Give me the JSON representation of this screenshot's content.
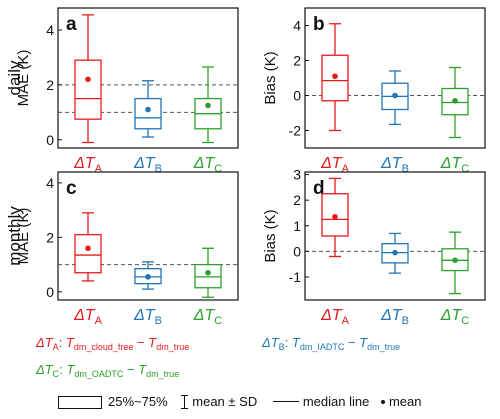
{
  "colors": {
    "A": "#e41a1c",
    "B": "#1f77b4",
    "C": "#2ca02c",
    "axis": "#111111",
    "ref": "#555555"
  },
  "row_labels": {
    "daily": "daily",
    "monthly": "monthly"
  },
  "chart_data": [
    {
      "type": "box",
      "panel": "a",
      "row": "daily",
      "ylabel": "MAE (K)",
      "ylim": [
        -0.3,
        4.8
      ],
      "yticks": [
        0,
        2,
        4
      ],
      "ref_lines": [
        2.0,
        1.0
      ],
      "categories": [
        "A",
        "B",
        "C"
      ],
      "boxes": [
        {
          "whisker_low": -0.1,
          "q1": 0.75,
          "median": 1.5,
          "q3": 2.9,
          "whisker_high": 4.55,
          "mean": 2.2
        },
        {
          "whisker_low": 0.1,
          "q1": 0.4,
          "median": 0.8,
          "q3": 1.5,
          "whisker_high": 2.15,
          "mean": 1.1
        },
        {
          "whisker_low": -0.1,
          "q1": 0.4,
          "median": 0.95,
          "q3": 1.5,
          "whisker_high": 2.65,
          "mean": 1.25
        }
      ]
    },
    {
      "type": "box",
      "panel": "b",
      "row": "daily",
      "ylabel": "Bias (K)",
      "ylim": [
        -3.0,
        5.0
      ],
      "yticks": [
        -2,
        0,
        2,
        4
      ],
      "ref_lines": [
        0
      ],
      "categories": [
        "A",
        "B",
        "C"
      ],
      "boxes": [
        {
          "whisker_low": -2.0,
          "q1": -0.3,
          "median": 0.85,
          "q3": 2.3,
          "whisker_high": 4.1,
          "mean": 1.1
        },
        {
          "whisker_low": -1.65,
          "q1": -0.8,
          "median": -0.05,
          "q3": 0.7,
          "whisker_high": 1.4,
          "mean": 0.0
        },
        {
          "whisker_low": -2.4,
          "q1": -1.1,
          "median": -0.4,
          "q3": 0.4,
          "whisker_high": 1.6,
          "mean": -0.3
        }
      ]
    },
    {
      "type": "box",
      "panel": "c",
      "row": "monthly",
      "ylabel": "MAE (K)",
      "ylim": [
        -0.3,
        4.4
      ],
      "yticks": [
        0,
        2,
        4
      ],
      "ref_lines": [
        1.0
      ],
      "categories": [
        "A",
        "B",
        "C"
      ],
      "boxes": [
        {
          "whisker_low": 0.4,
          "q1": 0.7,
          "median": 1.35,
          "q3": 2.1,
          "whisker_high": 2.9,
          "mean": 1.6
        },
        {
          "whisker_low": 0.1,
          "q1": 0.3,
          "median": 0.55,
          "q3": 0.85,
          "whisker_high": 1.1,
          "mean": 0.55
        },
        {
          "whisker_low": -0.2,
          "q1": 0.15,
          "median": 0.55,
          "q3": 1.0,
          "whisker_high": 1.6,
          "mean": 0.7
        }
      ]
    },
    {
      "type": "box",
      "panel": "d",
      "row": "monthly",
      "ylabel": "Bias (K)",
      "ylim": [
        -1.9,
        3.1
      ],
      "yticks": [
        -1,
        0,
        1,
        2,
        3
      ],
      "ref_lines": [
        0
      ],
      "categories": [
        "A",
        "B",
        "C"
      ],
      "boxes": [
        {
          "whisker_low": -0.2,
          "q1": 0.6,
          "median": 1.25,
          "q3": 2.25,
          "whisker_high": 2.85,
          "mean": 1.35
        },
        {
          "whisker_low": -0.85,
          "q1": -0.45,
          "median": -0.05,
          "q3": 0.3,
          "whisker_high": 0.7,
          "mean": -0.05
        },
        {
          "whisker_low": -1.65,
          "q1": -0.75,
          "median": -0.35,
          "q3": 0.1,
          "whisker_high": 0.75,
          "mean": -0.35
        }
      ]
    }
  ],
  "category_labels": {
    "A": {
      "delta": "ΔT",
      "sub": "A"
    },
    "B": {
      "delta": "ΔT",
      "sub": "B"
    },
    "C": {
      "delta": "ΔT",
      "sub": "C"
    }
  },
  "definitions": {
    "A": {
      "lhs": "ΔT",
      "lhs_sub": "A",
      "t1": "T",
      "t1_sub": "dm_cloud_free",
      "minus": " − ",
      "t2": "T",
      "t2_sub": "dm_true"
    },
    "B": {
      "lhs": "ΔT",
      "lhs_sub": "B",
      "t1": "T",
      "t1_sub": "dm_IADTC",
      "minus": " − ",
      "t2": "T",
      "t2_sub": "dm_true"
    },
    "C": {
      "lhs": "ΔT",
      "lhs_sub": "C",
      "t1": "T",
      "t1_sub": "dm_OADTC",
      "minus": " − ",
      "t2": "T",
      "t2_sub": "dm_true"
    }
  },
  "key": {
    "box": "25%~75%",
    "whisker": "mean ± SD",
    "median": "median line",
    "mean": "mean"
  }
}
